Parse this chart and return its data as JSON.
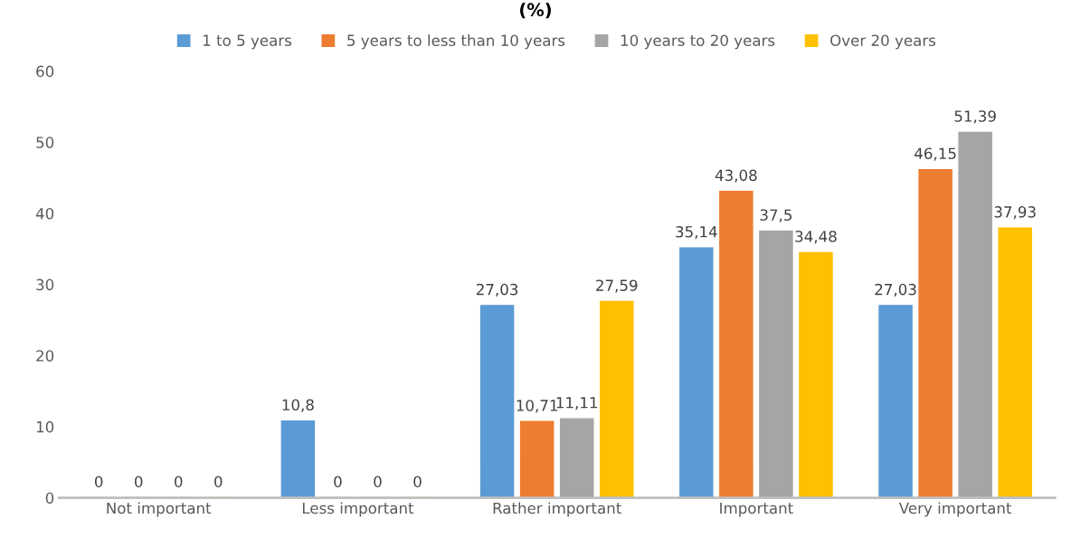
{
  "chart_data": {
    "type": "bar",
    "title": "(%)",
    "categories": [
      "Not important",
      "Less important",
      "Rather important",
      "Important",
      "Very important"
    ],
    "series": [
      {
        "name": "1 to 5 years",
        "color": "#5b9bd5",
        "values": [
          0,
          10.8,
          27.03,
          35.14,
          27.03
        ],
        "value_labels": [
          "0",
          "10,8",
          "27,03",
          "35,14",
          "27,03"
        ]
      },
      {
        "name": "5 years to less than 10 years",
        "color": "#ed7d31",
        "values": [
          0,
          0,
          10.71,
          43.08,
          46.15
        ],
        "value_labels": [
          "0",
          "0",
          "10,71",
          "43,08",
          "46,15"
        ]
      },
      {
        "name": "10 years to 20 years",
        "color": "#a5a5a5",
        "values": [
          0,
          0,
          11.11,
          37.5,
          51.39
        ],
        "value_labels": [
          "0",
          "0",
          "11,11",
          "37,5",
          "51,39"
        ]
      },
      {
        "name": "Over 20 years",
        "color": "#ffc000",
        "values": [
          0,
          0,
          27.59,
          34.48,
          37.93
        ],
        "value_labels": [
          "0",
          "0",
          "27,59",
          "34,48",
          "37,93"
        ]
      }
    ],
    "ylim": [
      0,
      60
    ],
    "yticks": [
      0,
      10,
      20,
      30,
      40,
      50,
      60
    ],
    "grid": false,
    "legend": "top"
  }
}
